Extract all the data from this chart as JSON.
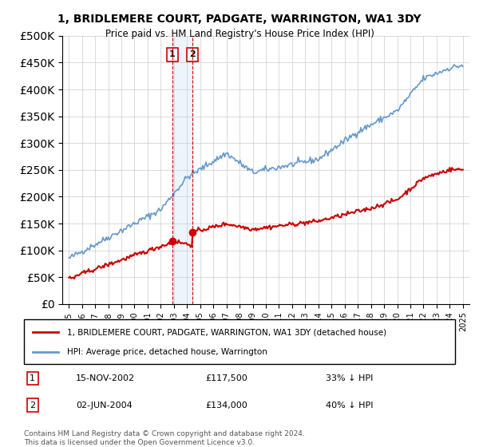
{
  "title": "1, BRIDLEMERE COURT, PADGATE, WARRINGTON, WA1 3DY",
  "subtitle": "Price paid vs. HM Land Registry's House Price Index (HPI)",
  "legend_label_red": "1, BRIDLEMERE COURT, PADGATE, WARRINGTON, WA1 3DY (detached house)",
  "legend_label_blue": "HPI: Average price, detached house, Warrington",
  "transaction1_date": "15-NOV-2002",
  "transaction1_price": 117500,
  "transaction1_label": "1",
  "transaction1_pct": "33% ↓ HPI",
  "transaction2_date": "02-JUN-2004",
  "transaction2_price": 134000,
  "transaction2_label": "2",
  "transaction2_pct": "40% ↓ HPI",
  "footer1": "Contains HM Land Registry data © Crown copyright and database right 2024.",
  "footer2": "This data is licensed under the Open Government Licence v3.0.",
  "ylim": [
    0,
    500000
  ],
  "yticks": [
    0,
    50000,
    100000,
    150000,
    200000,
    250000,
    300000,
    350000,
    400000,
    450000,
    500000
  ],
  "red_color": "#cc0000",
  "blue_color": "#6699cc",
  "background_color": "#ffffff",
  "grid_color": "#cccccc",
  "transaction_line_color": "#cc0000",
  "transaction_box_color": "#aaccee"
}
